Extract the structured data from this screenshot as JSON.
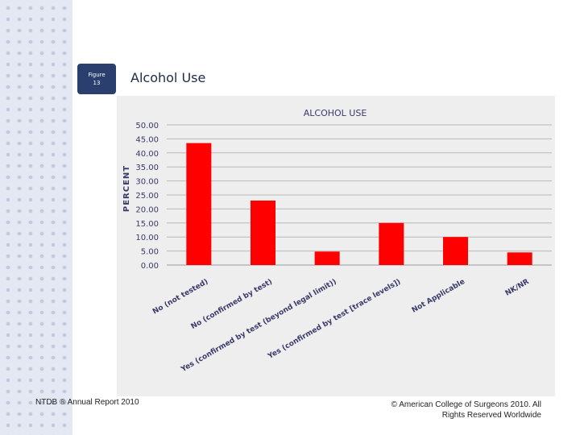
{
  "figure": {
    "line1": "Figure",
    "line2": "13"
  },
  "slide_title": "Alcohol Use",
  "footer": {
    "left": "NTDB ® Annual Report 2010",
    "right": "© American College of Surgeons 2010. All Rights Reserved Worldwide"
  },
  "colors": {
    "bar": "#ff0000",
    "panel": "#eeeeee",
    "badge": "#2a3f6d",
    "title_text": "#1f2a44"
  },
  "chart_data": {
    "type": "bar",
    "title": "ALCOHOL USE",
    "ylabel": "PERCENT",
    "xlabel": "",
    "ylim": [
      0,
      50
    ],
    "yticks": [
      "0.00",
      "5.00",
      "10.00",
      "15.00",
      "20.00",
      "25.00",
      "30.00",
      "35.00",
      "40.00",
      "45.00",
      "50.00"
    ],
    "grid": true,
    "legend": "none",
    "categories": [
      "No (not tested)",
      "No (confirmed by test)",
      "Yes (confirmed by test (beyond legal limit))",
      "Yes (confirmed by test [trace levels])",
      "Not Applicable",
      "NK/NR"
    ],
    "values": [
      43.5,
      23.0,
      4.8,
      15.0,
      10.0,
      4.5
    ]
  }
}
